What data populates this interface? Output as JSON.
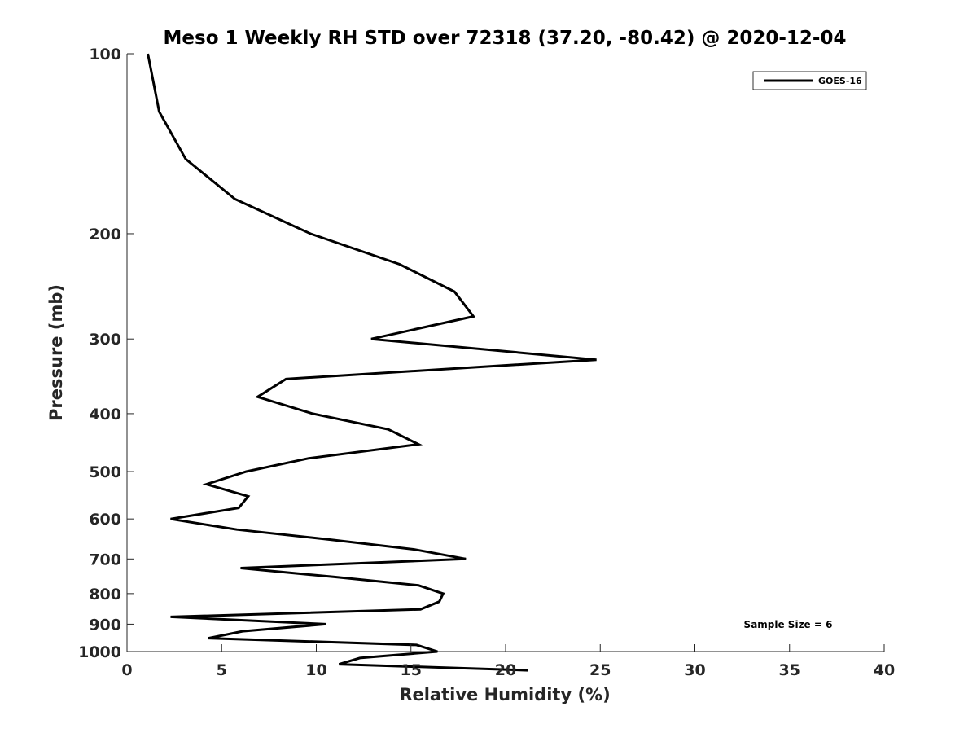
{
  "chart_data": {
    "type": "line",
    "title": "Meso 1 Weekly RH STD over 72318 (37.20, -80.42) @ 2020-12-04",
    "xlabel": "Relative Humidity (%)",
    "ylabel": "Pressure (mb)",
    "xlim": [
      0,
      40
    ],
    "ylim": [
      100,
      1000
    ],
    "y_scale": "log",
    "y_reversed": true,
    "x_ticks": [
      "0",
      "5",
      "10",
      "15",
      "20",
      "25",
      "30",
      "35",
      "40"
    ],
    "y_ticks": [
      "100",
      "200",
      "300",
      "400",
      "500",
      "600",
      "700",
      "800",
      "900",
      "1000"
    ],
    "grid": false,
    "legend_position": "top-right",
    "annotation": "Sample Size = 6",
    "series": [
      {
        "name": "GOES-16",
        "color": "#000000",
        "points": [
          [
            1.1,
            100
          ],
          [
            1.7,
            125
          ],
          [
            3.1,
            150
          ],
          [
            5.7,
            175
          ],
          [
            9.7,
            200
          ],
          [
            14.4,
            225
          ],
          [
            17.3,
            250
          ],
          [
            18.3,
            275
          ],
          [
            12.9,
            300
          ],
          [
            24.8,
            325
          ],
          [
            8.4,
            350
          ],
          [
            6.9,
            375
          ],
          [
            9.8,
            400
          ],
          [
            13.8,
            425
          ],
          [
            15.4,
            450
          ],
          [
            9.6,
            475
          ],
          [
            6.3,
            500
          ],
          [
            4.2,
            525
          ],
          [
            6.4,
            550
          ],
          [
            5.9,
            575
          ],
          [
            2.3,
            600
          ],
          [
            5.8,
            625
          ],
          [
            10.8,
            650
          ],
          [
            15.2,
            675
          ],
          [
            17.9,
            700
          ],
          [
            6.0,
            725
          ],
          [
            10.9,
            750
          ],
          [
            15.4,
            775
          ],
          [
            16.7,
            800
          ],
          [
            16.5,
            825
          ],
          [
            15.5,
            850
          ],
          [
            2.3,
            875
          ],
          [
            10.5,
            900
          ],
          [
            6.1,
            925
          ],
          [
            4.3,
            950
          ],
          [
            15.3,
            975
          ],
          [
            16.4,
            1000
          ],
          [
            12.3,
            1025
          ],
          [
            11.2,
            1050
          ],
          [
            21.2,
            1075
          ]
        ]
      }
    ]
  }
}
